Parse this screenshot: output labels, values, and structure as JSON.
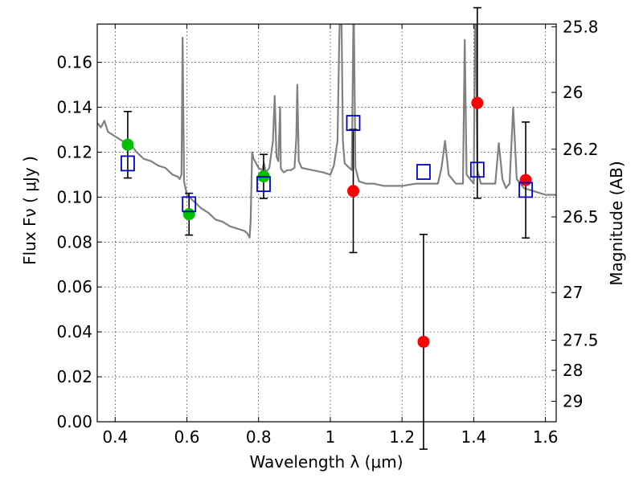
{
  "chart_data": {
    "type": "scatter",
    "xlabel": "Wavelength  λ (μm)",
    "ylabel": "Flux  Fν  ( μJy )",
    "y2label": "Magnitude (AB)",
    "xlim": [
      0.35,
      1.63
    ],
    "ylim": [
      0.0,
      0.177
    ],
    "grid": true,
    "x_ticks": [
      0.4,
      0.6,
      0.8,
      1.0,
      1.2,
      1.4,
      1.6
    ],
    "x_tick_labels": [
      "0.4",
      "0.6",
      "0.8",
      "1",
      "1.2",
      "1.4",
      "1.6"
    ],
    "y_ticks": [
      0.0,
      0.02,
      0.04,
      0.06,
      0.08,
      0.1,
      0.12,
      0.14,
      0.16
    ],
    "y_tick_labels": [
      "0.00",
      "0.02",
      "0.04",
      "0.06",
      "0.08",
      "0.10",
      "0.12",
      "0.14",
      "0.16"
    ],
    "y2_ticks": [
      {
        "label": "25.8",
        "flux": 0.1758
      },
      {
        "label": "26",
        "flux": 0.1466
      },
      {
        "label": "26.2",
        "flux": 0.1213
      },
      {
        "label": "26.5",
        "flux": 0.0912
      },
      {
        "label": "27",
        "flux": 0.0575
      },
      {
        "label": "27.5",
        "flux": 0.0363
      },
      {
        "label": "28",
        "flux": 0.0229
      },
      {
        "label": "29",
        "flux": 0.0091
      }
    ],
    "series": [
      {
        "marker": "circle",
        "color": "#00c000",
        "x": [
          0.435,
          0.606,
          0.814
        ],
        "y": [
          0.1233,
          0.0924,
          0.1092
        ],
        "yerr": [
          0.0148,
          0.0093,
          0.0098
        ]
      },
      {
        "marker": "circle",
        "color": "#ff0000",
        "x": [
          1.064,
          1.26,
          1.41,
          1.545
        ],
        "y": [
          0.1027,
          0.0356,
          0.1419,
          0.1076
        ],
        "yerr": [
          0.0274,
          0.0478,
          0.0424,
          0.0258
        ]
      },
      {
        "marker": "open-square",
        "color": "#0000cc",
        "x": [
          0.435,
          0.606,
          0.814,
          1.064,
          1.26,
          1.41,
          1.545
        ],
        "y": [
          0.115,
          0.0968,
          0.1058,
          0.133,
          0.1112,
          0.1122,
          0.1032
        ]
      }
    ],
    "model_spectrum": {
      "color": "#808080",
      "x": [
        0.35,
        0.36,
        0.37,
        0.38,
        0.4,
        0.42,
        0.44,
        0.46,
        0.48,
        0.5,
        0.52,
        0.54,
        0.56,
        0.575,
        0.58,
        0.585,
        0.588,
        0.592,
        0.6,
        0.62,
        0.64,
        0.66,
        0.68,
        0.7,
        0.72,
        0.74,
        0.76,
        0.768,
        0.775,
        0.778,
        0.782,
        0.786,
        0.79,
        0.8,
        0.81,
        0.815,
        0.82,
        0.83,
        0.84,
        0.845,
        0.85,
        0.855,
        0.86,
        0.862,
        0.865,
        0.87,
        0.88,
        0.89,
        0.9,
        0.905,
        0.908,
        0.912,
        0.92,
        0.95,
        0.98,
        1.0,
        1.01,
        1.02,
        1.025,
        1.03,
        1.035,
        1.04,
        1.06,
        1.065,
        1.07,
        1.08,
        1.1,
        1.12,
        1.15,
        1.2,
        1.24,
        1.27,
        1.3,
        1.31,
        1.32,
        1.33,
        1.35,
        1.37,
        1.375,
        1.38,
        1.4,
        1.405,
        1.41,
        1.42,
        1.44,
        1.46,
        1.47,
        1.48,
        1.49,
        1.5,
        1.51,
        1.52,
        1.54,
        1.56,
        1.58,
        1.6,
        1.63
      ],
      "y": [
        0.133,
        0.131,
        0.134,
        0.129,
        0.127,
        0.125,
        0.124,
        0.12,
        0.117,
        0.116,
        0.114,
        0.113,
        0.11,
        0.109,
        0.108,
        0.11,
        0.171,
        0.107,
        0.101,
        0.098,
        0.095,
        0.093,
        0.09,
        0.089,
        0.087,
        0.086,
        0.085,
        0.084,
        0.082,
        0.09,
        0.12,
        0.117,
        0.116,
        0.113,
        0.112,
        0.115,
        0.111,
        0.113,
        0.125,
        0.145,
        0.118,
        0.116,
        0.14,
        0.113,
        0.112,
        0.111,
        0.112,
        0.112,
        0.113,
        0.126,
        0.15,
        0.116,
        0.113,
        0.112,
        0.111,
        0.11,
        0.114,
        0.125,
        0.17,
        0.2,
        0.125,
        0.115,
        0.112,
        0.19,
        0.113,
        0.107,
        0.106,
        0.106,
        0.105,
        0.105,
        0.106,
        0.106,
        0.106,
        0.113,
        0.125,
        0.11,
        0.106,
        0.106,
        0.17,
        0.11,
        0.106,
        0.2,
        0.112,
        0.106,
        0.106,
        0.106,
        0.124,
        0.108,
        0.104,
        0.106,
        0.14,
        0.108,
        0.104,
        0.103,
        0.102,
        0.101,
        0.101
      ]
    }
  }
}
